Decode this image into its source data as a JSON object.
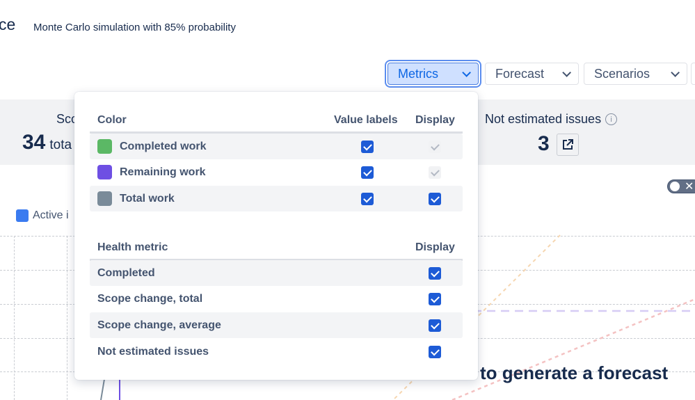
{
  "header": {
    "title_fragment": "ce",
    "subtitle": "Monte Carlo simulation with 85% probability"
  },
  "toolbar": {
    "buttons": [
      {
        "label": "Metrics",
        "active": true
      },
      {
        "label": "Forecast"
      },
      {
        "label": "Scenarios"
      }
    ]
  },
  "stats": {
    "scope_label_fragment": "Sco",
    "scope_value": "34",
    "scope_unit_fragment": "tota",
    "not_estimated_label": "Not estimated issues",
    "not_estimated_value": "3"
  },
  "chart": {
    "legend_fragment": "Active i",
    "message_fragment": "to generate a forecast",
    "toggle_on": false
  },
  "metrics_popup": {
    "color_section": {
      "headers": [
        "Color",
        "Value labels",
        "Display"
      ],
      "rows": [
        {
          "label": "Completed work",
          "color": "#5bb865",
          "value_labels": true,
          "display": true,
          "display_disabled": true
        },
        {
          "label": "Remaining work",
          "color": "#6e4fe3",
          "value_labels": true,
          "display": true,
          "display_disabled": true
        },
        {
          "label": "Total work",
          "color": "#7a8b99",
          "value_labels": true,
          "display": true,
          "display_disabled": false
        }
      ]
    },
    "health_section": {
      "headers": [
        "Health metric",
        "Display"
      ],
      "rows": [
        {
          "label": "Completed",
          "display": true
        },
        {
          "label": "Scope change, total",
          "display": true
        },
        {
          "label": "Scope change, average",
          "display": true
        },
        {
          "label": "Not estimated issues",
          "display": true
        }
      ]
    }
  },
  "colors": {
    "accent": "#1d5bd6",
    "legend_active": "#3a7bf0"
  }
}
